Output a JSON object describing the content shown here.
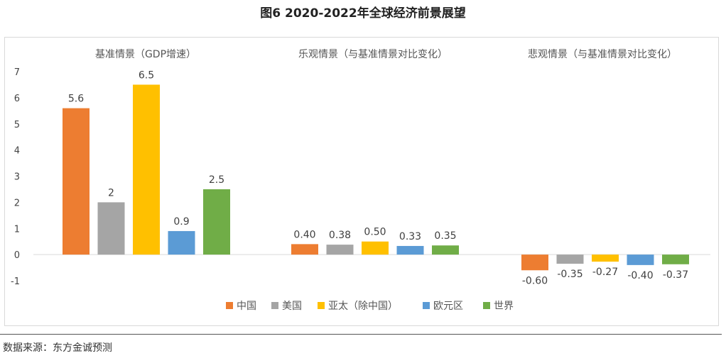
{
  "figure_title": "图6  2020-2022年全球经济前景展望",
  "source": "数据来源：东方金诚预测",
  "chart_data": {
    "type": "bar",
    "ylim": [
      -1,
      7
    ],
    "yticks": [
      "-1",
      "0",
      "1",
      "2",
      "3",
      "4",
      "5",
      "6",
      "7"
    ],
    "grid": false,
    "legend_position": "bottom",
    "series_legend": [
      {
        "name": "中国",
        "color": "#ED7D31"
      },
      {
        "name": "美国",
        "color": "#A5A5A5"
      },
      {
        "name": "亚太（除中国）",
        "color": "#FFC000"
      },
      {
        "name": "欧元区",
        "color": "#5B9BD5"
      },
      {
        "name": "世界",
        "color": "#70AD47"
      }
    ],
    "groups": [
      {
        "label": "基准情景（GDP增速）",
        "values": [
          5.6,
          2,
          6.5,
          0.9,
          2.5
        ],
        "data_labels": [
          "5.6",
          "2",
          "6.5",
          "0.9",
          "2.5"
        ]
      },
      {
        "label": "乐观情景（与基准情景对比变化）",
        "values": [
          0.4,
          0.38,
          0.5,
          0.33,
          0.35
        ],
        "data_labels": [
          "0.40",
          "0.38",
          "0.50",
          "0.33",
          "0.35"
        ]
      },
      {
        "label": "悲观情景（与基准情景对比变化）",
        "values": [
          -0.6,
          -0.35,
          -0.27,
          -0.4,
          -0.37
        ],
        "data_labels": [
          "-0.60",
          "-0.35",
          "-0.27",
          "-0.40",
          "-0.37"
        ]
      }
    ]
  }
}
